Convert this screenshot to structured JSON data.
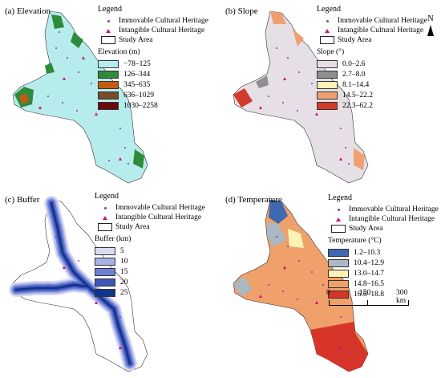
{
  "compass": {
    "label": "N"
  },
  "panels": [
    {
      "title": "(a) Elevation",
      "legend": {
        "title": "Legend",
        "items": [
          "Immovable Cultural Heritage",
          "Intangible Cultural Heritage",
          "Study Area"
        ]
      },
      "classification": {
        "title": "Elevation (m)",
        "classes": [
          {
            "label": "−78–125",
            "color": "#b7ecec"
          },
          {
            "label": "126–344",
            "color": "#2e8b3a"
          },
          {
            "label": "345–635",
            "color": "#c65a12"
          },
          {
            "label": "636–1029",
            "color": "#7a4a2a"
          },
          {
            "label": "1030–2258",
            "color": "#6b0a0a"
          }
        ]
      }
    },
    {
      "title": "(b) Slope",
      "legend": {
        "title": "Legend",
        "items": [
          "Immovable Cultural Heritage",
          "Intangible Cultural Heritage",
          "Study Area"
        ]
      },
      "classification": {
        "title": "Slope (°)",
        "classes": [
          {
            "label": "0.0–2.6",
            "color": "#e6e0e6"
          },
          {
            "label": "2.7–8.0",
            "color": "#8f8f8f"
          },
          {
            "label": "8.1–14.4",
            "color": "#fbf5b8"
          },
          {
            "label": "14.5–22.2",
            "color": "#f0a070"
          },
          {
            "label": "22.3–62.2",
            "color": "#d33a2c"
          }
        ]
      }
    },
    {
      "title": "(c) Buffer",
      "legend": {
        "title": "Legend",
        "items": [
          "Immovable Cultural Heritage",
          "Intangible Cultural Heritage",
          "Study Area"
        ]
      },
      "classification": {
        "title": "Buffer (km)",
        "classes": [
          {
            "label": "5",
            "color": "#d9dcf2"
          },
          {
            "label": "10",
            "color": "#a9b1e6"
          },
          {
            "label": "15",
            "color": "#6d7ed6"
          },
          {
            "label": "20",
            "color": "#3d56b8"
          },
          {
            "label": "25",
            "color": "#12348a"
          }
        ]
      }
    },
    {
      "title": "(d) Temperature",
      "legend": {
        "title": "Legend",
        "items": [
          "Immovable Cultural Heritage",
          "Intangible Cultural Heritage",
          "Study Area"
        ]
      },
      "classification": {
        "title": "Temperature (°C)",
        "classes": [
          {
            "label": "1.2–10.3",
            "color": "#3f69b0"
          },
          {
            "label": "10.4–12.9",
            "color": "#a9b8c2"
          },
          {
            "label": "13.0–14.7",
            "color": "#fbf3b5"
          },
          {
            "label": "14.8–16.5",
            "color": "#f0a06a"
          },
          {
            "label": "16.6–18.8",
            "color": "#d8352a"
          }
        ]
      },
      "scale_bar": {
        "labels": [
          "0",
          "150",
          "300 km"
        ]
      }
    }
  ]
}
